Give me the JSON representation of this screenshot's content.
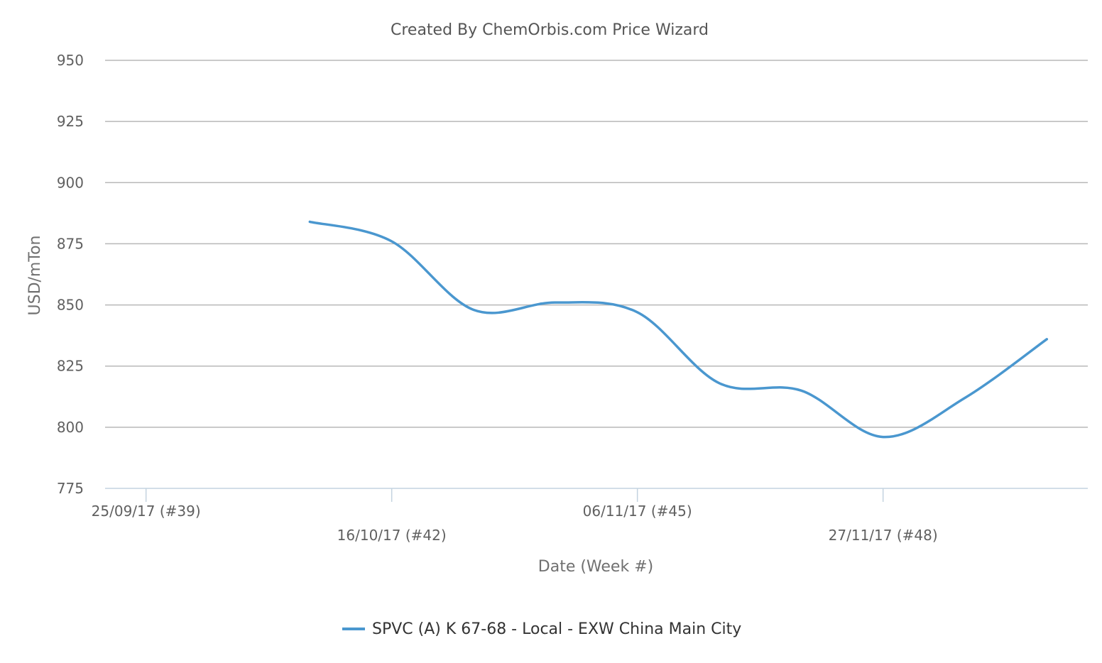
{
  "chart_data": {
    "type": "line",
    "title": "Created By ChemOrbis.com Price Wizard",
    "xlabel": "Date (Week #)",
    "ylabel": "USD/mTon",
    "ylim": [
      775,
      950
    ],
    "yticks": [
      775,
      800,
      825,
      850,
      875,
      900,
      925,
      950
    ],
    "grid": true,
    "legend_position": "bottom-center",
    "xticks": [
      {
        "week": 39,
        "label": "25/09/17 (#39)"
      },
      {
        "week": 42,
        "label": "16/10/17 (#42)"
      },
      {
        "week": 45,
        "label": "06/11/17 (#45)"
      },
      {
        "week": 48,
        "label": "27/11/17 (#48)"
      }
    ],
    "x_range_weeks": [
      38.5,
      50.5
    ],
    "series": [
      {
        "name": "SPVC (A) K 67-68 - Local - EXW China Main City",
        "color": "#4a97cf",
        "points": [
          {
            "week": 41.0,
            "value": 884
          },
          {
            "week": 42.0,
            "value": 876
          },
          {
            "week": 43.0,
            "value": 848
          },
          {
            "week": 44.0,
            "value": 851
          },
          {
            "week": 45.0,
            "value": 847
          },
          {
            "week": 46.0,
            "value": 818
          },
          {
            "week": 47.0,
            "value": 815
          },
          {
            "week": 48.0,
            "value": 796
          },
          {
            "week": 49.0,
            "value": 812
          },
          {
            "week": 50.0,
            "value": 836
          }
        ]
      }
    ]
  }
}
